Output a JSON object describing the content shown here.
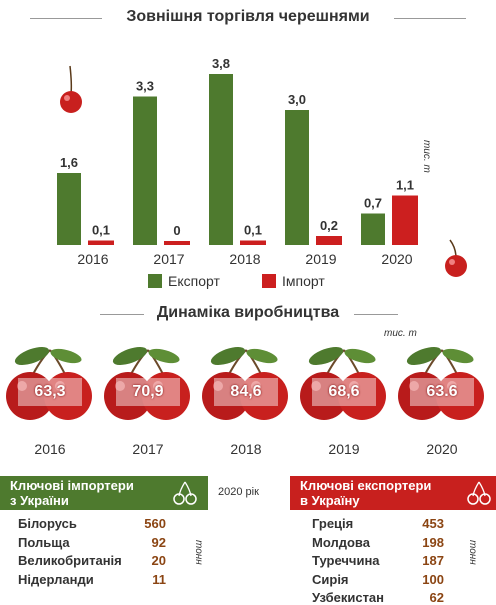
{
  "colors": {
    "export": "#4e7a2e",
    "import": "#cc1f1f",
    "export_value": "#8b4513",
    "import_panel": "#4e7a2e",
    "export_panel": "#c8201e"
  },
  "chart_data": {
    "type": "bar",
    "title": "Зовнішня торгівля черешнями",
    "unit": "тис. т",
    "categories": [
      "2016",
      "2017",
      "2018",
      "2019",
      "2020"
    ],
    "value_labels": {
      "export": [
        "1,6",
        "3,3",
        "3,8",
        "3,0",
        "0,7"
      ],
      "import": [
        "0,1",
        "0",
        "0,1",
        "0,2",
        "1,1"
      ]
    },
    "series": [
      {
        "name": "Експорт",
        "values": [
          1.6,
          3.3,
          3.8,
          3.0,
          0.7
        ]
      },
      {
        "name": "Імпорт",
        "values": [
          0.1,
          0,
          0.1,
          0.2,
          1.1
        ]
      }
    ],
    "ylim": [
      0,
      3.8
    ],
    "legend_position": "bottom"
  },
  "production": {
    "title": "Динаміка виробництва",
    "unit": "тис. т",
    "items": [
      {
        "year": "2016",
        "value": "63,3"
      },
      {
        "year": "2017",
        "value": "70,9"
      },
      {
        "year": "2018",
        "value": "84,6"
      },
      {
        "year": "2019",
        "value": "68,6"
      },
      {
        "year": "2020",
        "value": "63.6"
      }
    ]
  },
  "year_note": "2020 рік",
  "importers": {
    "title_line1": "Ключові імпортери",
    "title_line2": "з України",
    "unit": "тонн",
    "rows": [
      {
        "country": "Білорусь",
        "value": "560"
      },
      {
        "country": "Польща",
        "value": "92"
      },
      {
        "country": "Великобританія",
        "value": "20"
      },
      {
        "country": "Нідерланди",
        "value": "11"
      }
    ]
  },
  "exporters": {
    "title_line1": "Ключові експортери",
    "title_line2": "в Україну",
    "unit": "тонн",
    "rows": [
      {
        "country": "Греція",
        "value": "453"
      },
      {
        "country": "Молдова",
        "value": "198"
      },
      {
        "country": "Туреччина",
        "value": "187"
      },
      {
        "country": "Сирія",
        "value": "100"
      },
      {
        "country": "Узбекистан",
        "value": "62"
      }
    ]
  }
}
